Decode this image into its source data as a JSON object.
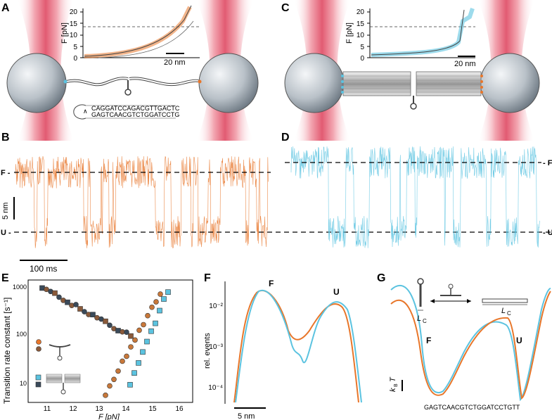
{
  "panel_labels": {
    "a": "A",
    "b": "B",
    "c": "C",
    "d": "D",
    "e": "E",
    "f": "F",
    "g": "G"
  },
  "panel_a": {
    "inset_y_ticks": [
      "20",
      "15",
      "10",
      "5",
      "0"
    ],
    "inset_ylabel": "F [pN]",
    "scale_bar": "20 nm",
    "seq_top": "CAGGATCCAGACGTTGACTC",
    "seq_bottom": "GAGTCAACGTCTGGATCCTG"
  },
  "panel_c": {
    "inset_y_ticks": [
      "20",
      "15",
      "10",
      "5",
      "0"
    ],
    "inset_ylabel": "F [pN]",
    "scale_bar": "20 nm"
  },
  "panel_b": {
    "state_f": "F -",
    "state_u": "U -",
    "scale_y": "5 nm",
    "scale_x": "100 ms"
  },
  "panel_d": {
    "state_f": "- F",
    "state_u": "- U"
  },
  "panel_e": {
    "ylabel": "Transition rate constant [s⁻¹]",
    "y_ticks": [
      "1000",
      "100",
      "10"
    ],
    "x_ticks": [
      "11",
      "12",
      "13",
      "14",
      "15",
      "16"
    ],
    "xlabel": "F [pN]",
    "orange_color": "#e8762a",
    "blue_color": "#5bc3e0",
    "dark_color": "#3a4a5a"
  },
  "panel_f": {
    "ylabel": "rel. events",
    "y_ticks": [
      "10⁻²",
      "10⁻³",
      "10⁻⁴"
    ],
    "peak_f": "F",
    "peak_u": "U",
    "scale": "5 nm"
  },
  "panel_g": {
    "label_f": "F",
    "label_u": "U",
    "lc_left": "L",
    "lc_sub": "C",
    "lc_right": "L",
    "energy_scale": "k",
    "energy_sub": "B",
    "energy_t": "T",
    "sequence": "GAGTCAACGTCTGGATCCTGTT"
  }
}
